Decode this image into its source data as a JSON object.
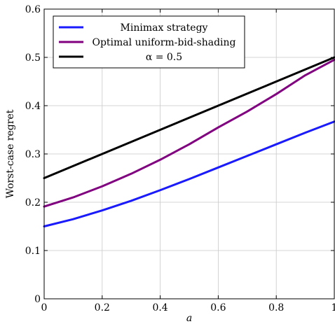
{
  "chart_data": {
    "type": "line",
    "xlabel": "a",
    "ylabel": "Worst-case regret",
    "xlim": [
      0,
      1
    ],
    "ylim": [
      0,
      0.6
    ],
    "x_ticks": [
      0,
      0.2,
      0.4,
      0.6,
      0.8,
      1
    ],
    "x_tick_labels": [
      "0",
      "0.2",
      "0.4",
      "0.6",
      "0.8",
      "1"
    ],
    "y_ticks": [
      0,
      0.1,
      0.2,
      0.3,
      0.4,
      0.5,
      0.6
    ],
    "y_tick_labels": [
      "0",
      "0.1",
      "0.2",
      "0.3",
      "0.4",
      "0.5",
      "0.6"
    ],
    "grid": true,
    "legend_position": "top-left",
    "series": [
      {
        "name": "Minimax strategy",
        "color": "#1a1aff",
        "x": [
          0,
          0.1,
          0.2,
          0.3,
          0.4,
          0.5,
          0.6,
          0.7,
          0.8,
          0.9,
          1.0
        ],
        "y": [
          0.15,
          0.165,
          0.183,
          0.203,
          0.225,
          0.248,
          0.272,
          0.296,
          0.32,
          0.344,
          0.367
        ]
      },
      {
        "name": "Optimal uniform-bid-shading",
        "color": "#800080",
        "x": [
          0,
          0.1,
          0.2,
          0.3,
          0.4,
          0.5,
          0.6,
          0.7,
          0.8,
          0.9,
          1.0
        ],
        "y": [
          0.191,
          0.21,
          0.233,
          0.259,
          0.288,
          0.32,
          0.355,
          0.388,
          0.424,
          0.463,
          0.495
        ]
      },
      {
        "name": "α = 0.5",
        "color": "#000000",
        "x": [
          0,
          1
        ],
        "y": [
          0.25,
          0.5
        ]
      }
    ]
  }
}
